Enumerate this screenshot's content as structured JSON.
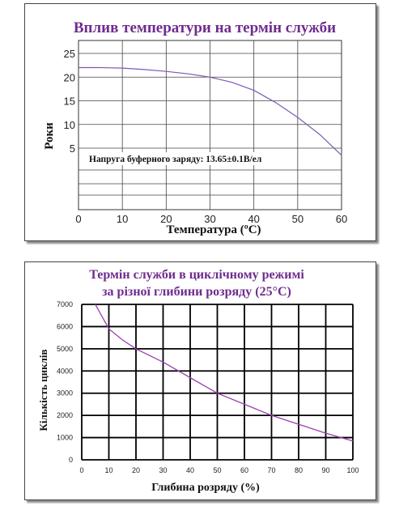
{
  "chart_data": [
    {
      "type": "line",
      "title": "Вплив температури на термін служби",
      "xlabel": "Температура (ºC)",
      "ylabel": "Роки",
      "xlim": [
        0,
        60
      ],
      "ylim": [
        0,
        25
      ],
      "x_ticks": [
        "0",
        "10",
        "20",
        "30",
        "40",
        "50",
        "60"
      ],
      "y_ticks": [
        "25",
        "20",
        "15",
        "10",
        "5"
      ],
      "grid": true,
      "annotation": "Напруга буферного заряду: 13.65±0.1В/ел",
      "line_color": "#7b59b3",
      "series": [
        {
          "x": [
            0,
            5,
            10,
            15,
            20,
            25,
            30,
            35,
            40,
            45,
            50,
            55,
            60
          ],
          "y": [
            22,
            22,
            21.9,
            21.6,
            21.2,
            20.7,
            20,
            18.9,
            17.2,
            14.6,
            11.5,
            7.9,
            3.5
          ]
        }
      ]
    },
    {
      "type": "line",
      "title": "Термін служби в циклічному режимі за різної глибини розряду (25°C)",
      "title_lines": [
        "Термін служби в циклічному режимі",
        "за різної глибини розряду (25°C)"
      ],
      "xlabel": "Глибина розряду (%)",
      "ylabel": "Кількість циклів",
      "xlim": [
        0,
        100
      ],
      "ylim": [
        0,
        7000
      ],
      "x_ticks": [
        "0",
        "10",
        "20",
        "30",
        "40",
        "50",
        "60",
        "70",
        "80",
        "90",
        "100"
      ],
      "y_ticks": [
        "7000",
        "6000",
        "5000",
        "4000",
        "3000",
        "2000",
        "1000",
        "0"
      ],
      "grid": true,
      "line_color": "#9b3fb0",
      "series": [
        {
          "x": [
            5,
            10,
            15,
            20,
            30,
            40,
            50,
            60,
            70,
            80,
            90,
            100
          ],
          "y": [
            7000,
            5900,
            5400,
            5000,
            4400,
            3700,
            3000,
            2500,
            2000,
            1600,
            1200,
            850
          ]
        }
      ]
    }
  ]
}
